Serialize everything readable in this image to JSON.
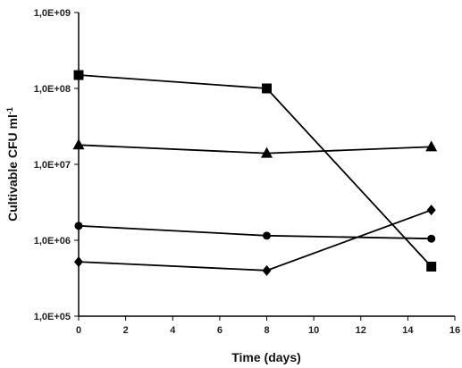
{
  "chart_data": {
    "type": "line",
    "xlabel": "Time (days)",
    "ylabel": "Cultivable CFU ml",
    "ylabel_superscript": "-1",
    "y_scale": "log",
    "xlim": [
      0,
      16
    ],
    "ylim": [
      100000,
      1000000000
    ],
    "x_ticks": [
      "0",
      "2",
      "4",
      "6",
      "8",
      "10",
      "12",
      "14",
      "16"
    ],
    "y_ticks": [
      "1,0E+05",
      "1,0E+06",
      "1,0E+07",
      "1,0E+08",
      "1,0E+09"
    ],
    "grid": false,
    "legend": false,
    "line_color": "#000000",
    "series": [
      {
        "marker": "square",
        "x": [
          0,
          8,
          15
        ],
        "y": [
          150000000,
          100000000,
          450000
        ]
      },
      {
        "marker": "triangle",
        "x": [
          0,
          8,
          15
        ],
        "y": [
          18000000,
          14000000,
          17000000
        ]
      },
      {
        "marker": "circle",
        "x": [
          0,
          8,
          15
        ],
        "y": [
          1550000,
          1150000,
          1050000
        ]
      },
      {
        "marker": "diamond",
        "x": [
          0,
          8,
          15
        ],
        "y": [
          520000,
          400000,
          2500000
        ]
      }
    ]
  }
}
